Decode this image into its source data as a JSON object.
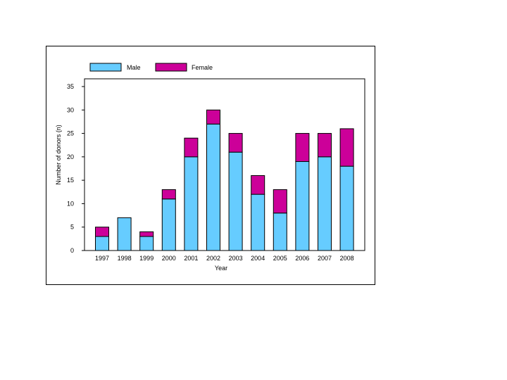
{
  "chart_data": {
    "type": "bar",
    "stacked": true,
    "categories": [
      "1997",
      "1998",
      "1999",
      "2000",
      "2001",
      "2002",
      "2003",
      "2004",
      "2005",
      "2006",
      "2007",
      "2008"
    ],
    "series": [
      {
        "name": "Male",
        "color": "#66ccff",
        "values": [
          3,
          7,
          3,
          11,
          20,
          27,
          21,
          12,
          8,
          19,
          20,
          18
        ]
      },
      {
        "name": "Female",
        "color": "#cc0099",
        "values": [
          2,
          0,
          1,
          2,
          4,
          3,
          4,
          4,
          5,
          6,
          5,
          8
        ]
      }
    ],
    "xlabel": "Year",
    "ylabel": "Number of donors (n)",
    "ylim": [
      0,
      35
    ],
    "yticks": [
      0,
      5,
      10,
      15,
      20,
      25,
      30,
      35
    ],
    "grid": false,
    "legend_position": "top"
  }
}
